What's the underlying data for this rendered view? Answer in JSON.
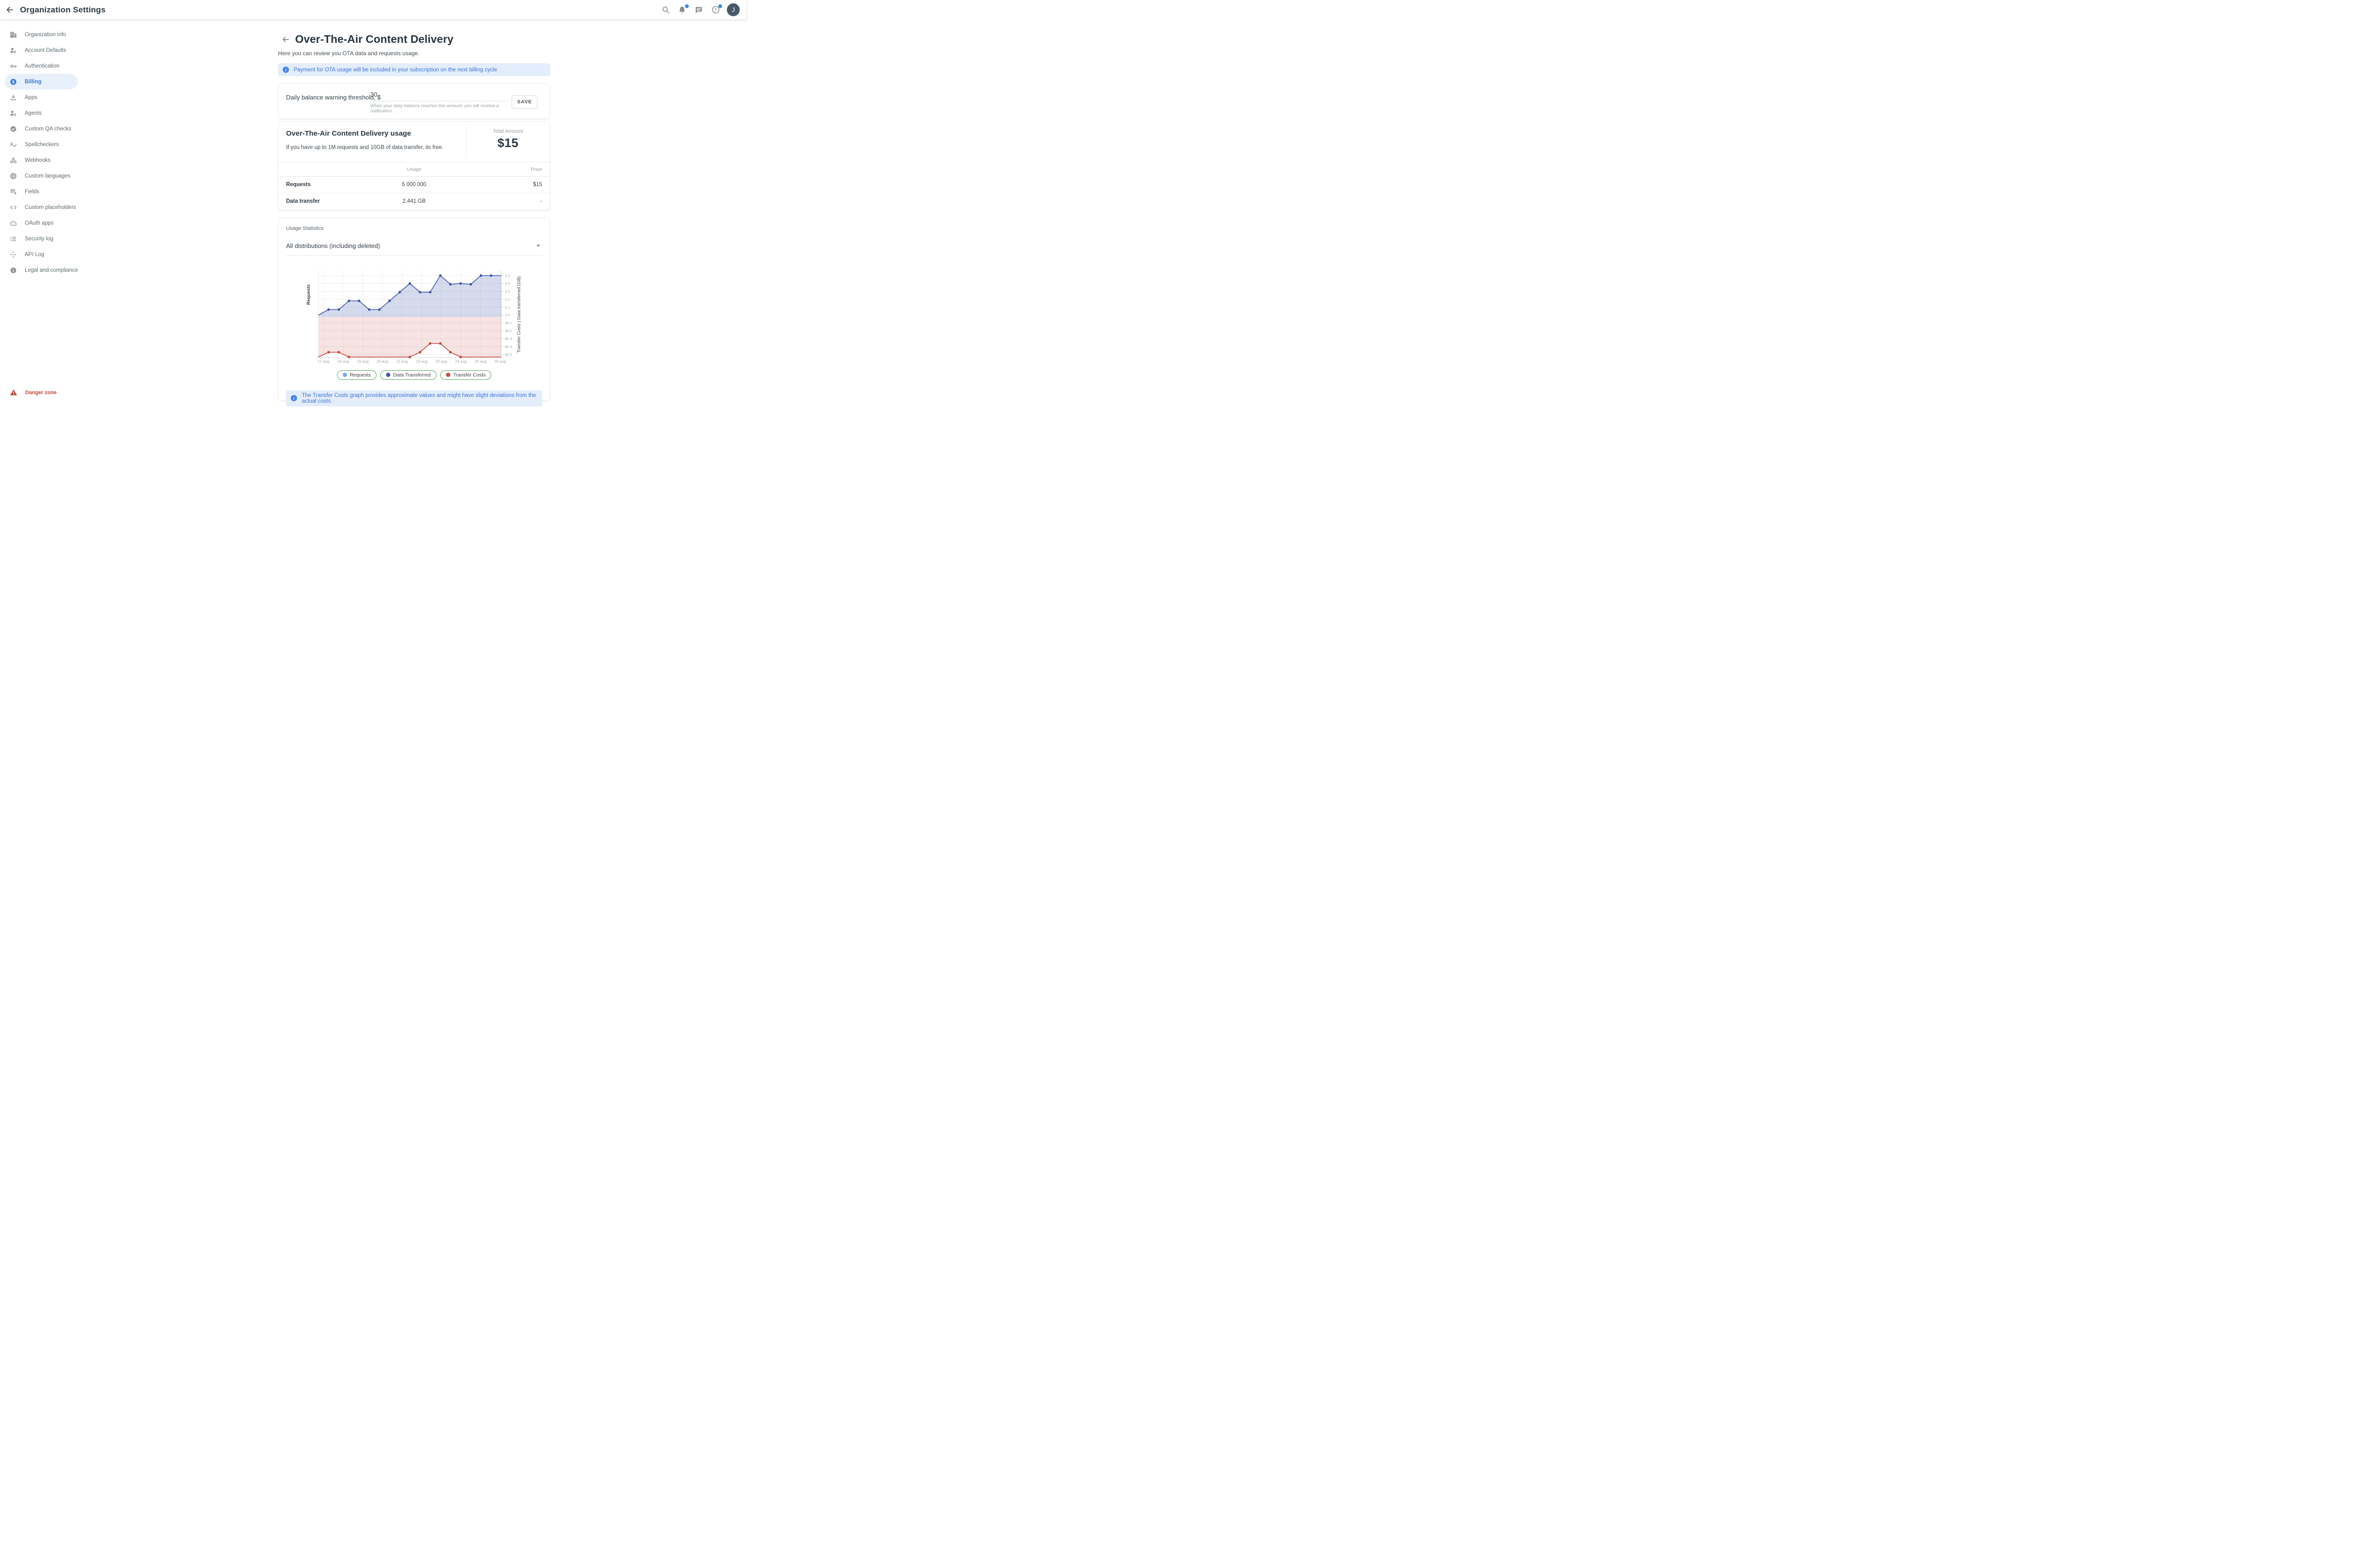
{
  "topbar": {
    "title": "Organization Settings"
  },
  "avatar": {
    "initial": "J"
  },
  "sidebar": {
    "items": [
      {
        "label": "Organization info"
      },
      {
        "label": "Account Defaults"
      },
      {
        "label": "Authentication"
      },
      {
        "label": "Billing"
      },
      {
        "label": "Apps"
      },
      {
        "label": "Agents"
      },
      {
        "label": "Custom QA checks"
      },
      {
        "label": "Spellcheckers"
      },
      {
        "label": "Webhooks"
      },
      {
        "label": "Custom languages"
      },
      {
        "label": "Fields"
      },
      {
        "label": "Custom placeholders"
      },
      {
        "label": "OAuth apps"
      },
      {
        "label": "Security log"
      },
      {
        "label": "API Log"
      },
      {
        "label": "Legal and compliance"
      }
    ],
    "danger_label": "Danger zone"
  },
  "page": {
    "title": "Over-The-Air Content Delivery",
    "subtitle": "Here you can review you OTA data and requests usage."
  },
  "banners": {
    "payment": "Payment for OTA usage will be included in your subscription on the next billing cycle",
    "transfer_costs": "The Transfer Costs graph provides approximate values and might have slight deviations from the actual costs."
  },
  "threshold": {
    "label": "Daily balance warning threshold, $",
    "value": "30",
    "helper": "When your daily balance reaches this amount, you will receive a notification.",
    "save_label": "SAVE"
  },
  "usage": {
    "title": "Over-The-Air Content Delivery usage",
    "description": "If you have up to 1M requests and 10GB of data transfer, its free.",
    "total_label": "Total Amount",
    "total_value": "$15",
    "table": {
      "col_usage": "Usage",
      "col_price": "Price",
      "rows": [
        {
          "name": "Requests",
          "usage": "5 000 000",
          "price": "$15"
        },
        {
          "name": "Data transfer",
          "usage": "2.441 GB",
          "price": "-"
        }
      ]
    }
  },
  "stats": {
    "title": "Usage Statistics",
    "select_value": "All distributions (including deleted)"
  },
  "chart_data": {
    "type": "area",
    "title": "Usage Statistics",
    "x_labels": [
      "17 aug",
      "18 aug",
      "19 aug",
      "20 aug",
      "21 aug",
      "23 aug",
      "23 aug",
      "24 aug",
      "25 aug",
      "26 aug"
    ],
    "left_axis_label": "Requests",
    "right_axis_label": "Transfer Costs | Data transferred (GB)",
    "gb_ticks": [
      0.5,
      0.4,
      0.3,
      0.2,
      0.1,
      0.0
    ],
    "cost_ticks": [
      "$0.1",
      "$0.2",
      "$0.3",
      "$0.4",
      "$0.5"
    ],
    "grid": true,
    "series": [
      {
        "name": "Requests",
        "color": "#74a9ec",
        "axis": "requests",
        "values": []
      },
      {
        "name": "Data Transferred",
        "color": "#3f58ac",
        "axis": "gb",
        "values": [
          0,
          0.07,
          0.07,
          0.18,
          0.18,
          0.07,
          0.07,
          0.18,
          0.29,
          0.4,
          0.29,
          0.29,
          0.5,
          0.39,
          0.4,
          0.39,
          0.5,
          0.5,
          0.5
        ],
        "marker_indices": [
          1,
          2,
          3,
          4,
          5,
          6,
          7,
          8,
          9,
          10,
          11,
          12,
          13,
          14,
          15,
          16,
          17
        ],
        "fill": "rgba(63,88,172,0.22)"
      },
      {
        "name": "Transfer Costs",
        "color": "#c8483c",
        "axis": "usd",
        "values": [
          0.53,
          0.47,
          0.47,
          0.53,
          0.53,
          0.53,
          0.53,
          0.53,
          0.53,
          0.53,
          0.47,
          0.36,
          0.36,
          0.47,
          0.53,
          0.53,
          0.53,
          0.53,
          0.53
        ],
        "marker_indices": [
          1,
          2,
          3,
          9,
          10,
          11,
          12,
          13,
          14
        ],
        "fill": "rgba(201,72,60,0.15)"
      }
    ],
    "legend": [
      {
        "label": "Requests",
        "color": "#74a9ec"
      },
      {
        "label": "Data Transferred",
        "color": "#3f58ac"
      },
      {
        "label": "Transfer Costs",
        "color": "#c8483c"
      }
    ],
    "legend_position": "bottom"
  }
}
